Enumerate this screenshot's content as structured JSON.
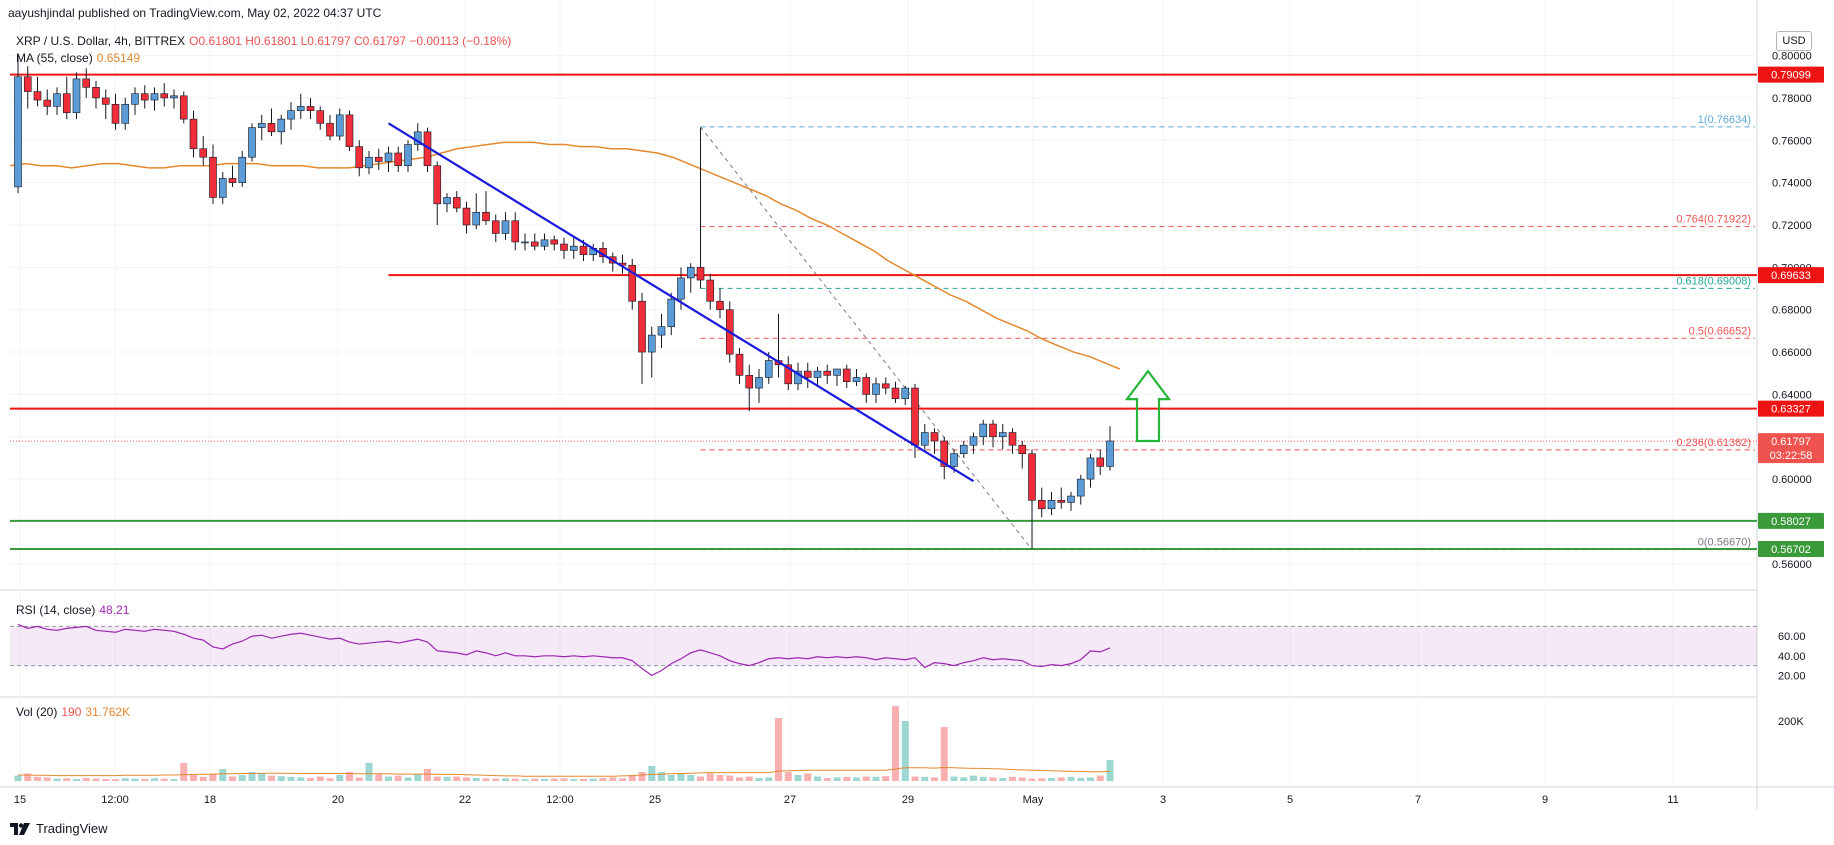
{
  "header": {
    "published": "aayushjindal published on TradingView.com, May 02, 2022 04:37 UTC"
  },
  "legend": {
    "symbol": "XRP / U.S. Dollar, 4h, BITTREX",
    "ohlc": "O0.61801 H0.61801 L0.61797 C0.61797 −0.00113 (−0.18%)",
    "ma_label": "MA (55, close)",
    "ma_value": "0.65149",
    "rsi_label": "RSI (14, close)",
    "rsi_value": "48.21",
    "vol_label": "Vol (20)",
    "vol_value1": "190",
    "vol_value2": "31.762K"
  },
  "currency_badge": "USD",
  "footer": {
    "brand": "TradingView"
  },
  "colors": {
    "up": "#5b9cd6",
    "down": "#ef2e3a",
    "ma": "#e4892f",
    "trendline": "#1a1adf",
    "resistance": "#ef1414",
    "support": "#3a9a3a",
    "fib": "#ef5350",
    "rsi": "#9c27b0",
    "arrow": "#27b43b"
  },
  "chart_data": {
    "type": "candlestick",
    "title": "XRP / U.S. Dollar, 4h, BITTREX",
    "ylim": [
      0.55,
      0.805
    ],
    "y_ticks": [
      "0.80000",
      "0.78000",
      "0.76000",
      "0.74000",
      "0.72000",
      "0.70000",
      "0.68000",
      "0.66000",
      "0.64000",
      "0.62000",
      "0.60000",
      "0.58000",
      "0.56000"
    ],
    "x_ticks": [
      "15",
      "12:00",
      "18",
      "20",
      "22",
      "12:00",
      "25",
      "27",
      "29",
      "May",
      "3",
      "5",
      "7",
      "9",
      "11"
    ],
    "price_labels": [
      {
        "value": 0.79099,
        "text": "0.79099",
        "color": "#ef1414"
      },
      {
        "value": 0.69633,
        "text": "0.69633",
        "color": "#ef1414"
      },
      {
        "value": 0.63327,
        "text": "0.63327",
        "color": "#ef1414"
      },
      {
        "value": 0.61797,
        "text": "0.61797",
        "color": "#ef5350",
        "sub": "03:22:58"
      },
      {
        "value": 0.58027,
        "text": "0.58027",
        "color": "#3a9a3a"
      },
      {
        "value": 0.56702,
        "text": "0.56702",
        "color": "#3a9a3a"
      }
    ],
    "horizontal_levels": {
      "resistance": [
        0.79099,
        0.69633,
        0.63327
      ],
      "support": [
        0.58027,
        0.56702
      ]
    },
    "fibonacci": [
      {
        "ratio": "1",
        "value": 0.76634,
        "label": "1(0.76634)",
        "color": "#5fa8d3"
      },
      {
        "ratio": "0.764",
        "value": 0.71922,
        "label": "0.764(0.71922)",
        "color": "#ef5350"
      },
      {
        "ratio": "0.618",
        "value": 0.69008,
        "label": "0.618(0.69008)",
        "color": "#26a69a"
      },
      {
        "ratio": "0.5",
        "value": 0.66652,
        "label": "0.5(0.66652)",
        "color": "#ef5350"
      },
      {
        "ratio": "0.236",
        "value": 0.61382,
        "label": "0.236(0.61382)",
        "color": "#ef5350"
      },
      {
        "ratio": "0",
        "value": 0.5667,
        "label": "0(0.56670)",
        "color": "#787b86"
      }
    ],
    "candles": [
      [
        0.738,
        0.8,
        0.735,
        0.79
      ],
      [
        0.79,
        0.795,
        0.775,
        0.783
      ],
      [
        0.783,
        0.79,
        0.776,
        0.779
      ],
      [
        0.779,
        0.784,
        0.772,
        0.776
      ],
      [
        0.776,
        0.785,
        0.772,
        0.782
      ],
      [
        0.782,
        0.79,
        0.77,
        0.773
      ],
      [
        0.773,
        0.792,
        0.77,
        0.789
      ],
      [
        0.789,
        0.794,
        0.78,
        0.785
      ],
      [
        0.785,
        0.788,
        0.775,
        0.78
      ],
      [
        0.78,
        0.784,
        0.77,
        0.777
      ],
      [
        0.777,
        0.782,
        0.765,
        0.768
      ],
      [
        0.768,
        0.78,
        0.765,
        0.777
      ],
      [
        0.777,
        0.785,
        0.772,
        0.782
      ],
      [
        0.782,
        0.786,
        0.775,
        0.779
      ],
      [
        0.779,
        0.785,
        0.774,
        0.782
      ],
      [
        0.782,
        0.787,
        0.776,
        0.78
      ],
      [
        0.78,
        0.784,
        0.775,
        0.781
      ],
      [
        0.781,
        0.783,
        0.768,
        0.77
      ],
      [
        0.77,
        0.774,
        0.752,
        0.756
      ],
      [
        0.756,
        0.762,
        0.748,
        0.752
      ],
      [
        0.752,
        0.758,
        0.73,
        0.733
      ],
      [
        0.733,
        0.745,
        0.73,
        0.742
      ],
      [
        0.742,
        0.748,
        0.738,
        0.74
      ],
      [
        0.74,
        0.755,
        0.738,
        0.752
      ],
      [
        0.752,
        0.768,
        0.75,
        0.766
      ],
      [
        0.766,
        0.772,
        0.76,
        0.768
      ],
      [
        0.768,
        0.775,
        0.762,
        0.764
      ],
      [
        0.764,
        0.772,
        0.758,
        0.77
      ],
      [
        0.77,
        0.778,
        0.765,
        0.774
      ],
      [
        0.774,
        0.782,
        0.77,
        0.776
      ],
      [
        0.776,
        0.78,
        0.77,
        0.774
      ],
      [
        0.774,
        0.776,
        0.765,
        0.768
      ],
      [
        0.768,
        0.772,
        0.76,
        0.762
      ],
      [
        0.762,
        0.775,
        0.76,
        0.772
      ],
      [
        0.772,
        0.774,
        0.755,
        0.757
      ],
      [
        0.757,
        0.76,
        0.743,
        0.747
      ],
      [
        0.747,
        0.755,
        0.744,
        0.752
      ],
      [
        0.752,
        0.756,
        0.746,
        0.75
      ],
      [
        0.75,
        0.757,
        0.745,
        0.754
      ],
      [
        0.754,
        0.757,
        0.745,
        0.748
      ],
      [
        0.748,
        0.76,
        0.745,
        0.758
      ],
      [
        0.758,
        0.768,
        0.755,
        0.764
      ],
      [
        0.764,
        0.766,
        0.745,
        0.748
      ],
      [
        0.748,
        0.75,
        0.72,
        0.73
      ],
      [
        0.73,
        0.735,
        0.726,
        0.733
      ],
      [
        0.733,
        0.736,
        0.726,
        0.728
      ],
      [
        0.728,
        0.731,
        0.716,
        0.72
      ],
      [
        0.72,
        0.735,
        0.718,
        0.726
      ],
      [
        0.726,
        0.736,
        0.72,
        0.722
      ],
      [
        0.722,
        0.725,
        0.712,
        0.716
      ],
      [
        0.716,
        0.726,
        0.713,
        0.722
      ],
      [
        0.722,
        0.726,
        0.708,
        0.712
      ],
      [
        0.712,
        0.716,
        0.708,
        0.712
      ],
      [
        0.712,
        0.716,
        0.708,
        0.71
      ],
      [
        0.71,
        0.716,
        0.708,
        0.713
      ],
      [
        0.713,
        0.715,
        0.708,
        0.711
      ],
      [
        0.711,
        0.714,
        0.704,
        0.708
      ],
      [
        0.708,
        0.714,
        0.704,
        0.71
      ],
      [
        0.71,
        0.713,
        0.703,
        0.706
      ],
      [
        0.706,
        0.711,
        0.703,
        0.709
      ],
      [
        0.709,
        0.712,
        0.702,
        0.705
      ],
      [
        0.705,
        0.707,
        0.698,
        0.702
      ],
      [
        0.702,
        0.706,
        0.697,
        0.701
      ],
      [
        0.701,
        0.704,
        0.68,
        0.684
      ],
      [
        0.684,
        0.688,
        0.645,
        0.66
      ],
      [
        0.66,
        0.672,
        0.648,
        0.668
      ],
      [
        0.668,
        0.678,
        0.662,
        0.672
      ],
      [
        0.672,
        0.688,
        0.668,
        0.685
      ],
      [
        0.685,
        0.7,
        0.68,
        0.695
      ],
      [
        0.695,
        0.702,
        0.688,
        0.7
      ],
      [
        0.7,
        0.766,
        0.69,
        0.694
      ],
      [
        0.694,
        0.697,
        0.68,
        0.684
      ],
      [
        0.684,
        0.69,
        0.676,
        0.68
      ],
      [
        0.68,
        0.684,
        0.655,
        0.659
      ],
      [
        0.659,
        0.662,
        0.645,
        0.649
      ],
      [
        0.649,
        0.654,
        0.632,
        0.643
      ],
      [
        0.643,
        0.652,
        0.636,
        0.648
      ],
      [
        0.648,
        0.66,
        0.645,
        0.656
      ],
      [
        0.656,
        0.678,
        0.648,
        0.654
      ],
      [
        0.654,
        0.658,
        0.642,
        0.645
      ],
      [
        0.645,
        0.655,
        0.642,
        0.651
      ],
      [
        0.651,
        0.655,
        0.643,
        0.648
      ],
      [
        0.648,
        0.653,
        0.644,
        0.651
      ],
      [
        0.651,
        0.654,
        0.645,
        0.649
      ],
      [
        0.649,
        0.652,
        0.644,
        0.652
      ],
      [
        0.652,
        0.654,
        0.643,
        0.646
      ],
      [
        0.646,
        0.652,
        0.644,
        0.648
      ],
      [
        0.648,
        0.65,
        0.636,
        0.64
      ],
      [
        0.64,
        0.648,
        0.636,
        0.645
      ],
      [
        0.645,
        0.648,
        0.64,
        0.643
      ],
      [
        0.643,
        0.646,
        0.636,
        0.638
      ],
      [
        0.638,
        0.644,
        0.635,
        0.643
      ],
      [
        0.643,
        0.645,
        0.61,
        0.616
      ],
      [
        0.616,
        0.626,
        0.614,
        0.622
      ],
      [
        0.622,
        0.624,
        0.612,
        0.618
      ],
      [
        0.618,
        0.62,
        0.6,
        0.606
      ],
      [
        0.606,
        0.614,
        0.603,
        0.612
      ],
      [
        0.612,
        0.618,
        0.61,
        0.616
      ],
      [
        0.616,
        0.622,
        0.612,
        0.62
      ],
      [
        0.62,
        0.628,
        0.616,
        0.626
      ],
      [
        0.626,
        0.628,
        0.615,
        0.62
      ],
      [
        0.62,
        0.626,
        0.614,
        0.622
      ],
      [
        0.622,
        0.624,
        0.612,
        0.616
      ],
      [
        0.616,
        0.618,
        0.605,
        0.612
      ],
      [
        0.612,
        0.614,
        0.567,
        0.59
      ],
      [
        0.59,
        0.596,
        0.582,
        0.586
      ],
      [
        0.586,
        0.594,
        0.583,
        0.59
      ],
      [
        0.59,
        0.596,
        0.586,
        0.589
      ],
      [
        0.589,
        0.594,
        0.585,
        0.592
      ],
      [
        0.592,
        0.602,
        0.588,
        0.6
      ],
      [
        0.6,
        0.612,
        0.596,
        0.61
      ],
      [
        0.61,
        0.614,
        0.602,
        0.606
      ],
      [
        0.606,
        0.625,
        0.604,
        0.618
      ]
    ],
    "ma_55": [
      0.748,
      0.749,
      0.748,
      0.748,
      0.747,
      0.748,
      0.749,
      0.749,
      0.748,
      0.747,
      0.747,
      0.748,
      0.748,
      0.748,
      0.749,
      0.749,
      0.749,
      0.748,
      0.748,
      0.748,
      0.747,
      0.747,
      0.747,
      0.748,
      0.749,
      0.75,
      0.751,
      0.752,
      0.754,
      0.756,
      0.757,
      0.758,
      0.759,
      0.759,
      0.759,
      0.758,
      0.758,
      0.757,
      0.757,
      0.756,
      0.756,
      0.755,
      0.754,
      0.752,
      0.749,
      0.746,
      0.743,
      0.74,
      0.737,
      0.734,
      0.73,
      0.727,
      0.723,
      0.72,
      0.716,
      0.712,
      0.708,
      0.703,
      0.699,
      0.695,
      0.691,
      0.687,
      0.684,
      0.68,
      0.676,
      0.673,
      0.67,
      0.666,
      0.663,
      0.66,
      0.658,
      0.655,
      0.652
    ],
    "ma_start_index": 0,
    "ma_plot_end_index": 113,
    "rsi": {
      "range": [
        0,
        100
      ],
      "ticks": [
        60,
        40,
        20
      ],
      "band": [
        30,
        70
      ],
      "values": [
        72,
        68,
        70,
        67,
        66,
        68,
        69,
        70,
        66,
        65,
        64,
        67,
        66,
        65,
        67,
        66,
        65,
        62,
        58,
        56,
        49,
        47,
        52,
        55,
        60,
        61,
        58,
        60,
        62,
        63,
        61,
        59,
        57,
        58,
        54,
        52,
        53,
        54,
        55,
        53,
        55,
        57,
        54,
        45,
        44,
        43,
        41,
        45,
        43,
        40,
        43,
        40,
        40,
        39,
        40,
        40,
        39,
        40,
        39,
        40,
        39,
        38,
        38,
        35,
        27,
        20,
        25,
        32,
        37,
        43,
        46,
        43,
        40,
        35,
        32,
        30,
        33,
        37,
        38,
        37,
        38,
        37,
        39,
        38,
        39,
        38,
        39,
        38,
        36,
        38,
        37,
        36,
        38,
        28,
        33,
        32,
        30,
        33,
        35,
        38,
        36,
        37,
        36,
        35,
        30,
        29,
        31,
        30,
        32,
        36,
        45,
        44,
        48
      ]
    },
    "volume": {
      "ticks": [
        "200K"
      ],
      "max": 270000,
      "values": [
        18000,
        25000,
        14000,
        12000,
        8000,
        9000,
        7000,
        10000,
        8000,
        7000,
        6000,
        9000,
        8000,
        7000,
        9000,
        8000,
        6000,
        60000,
        20000,
        14000,
        25000,
        40000,
        15000,
        20000,
        30000,
        25000,
        18000,
        16000,
        14000,
        12000,
        10000,
        15000,
        9000,
        20000,
        30000,
        12000,
        60000,
        22000,
        15000,
        18000,
        12000,
        25000,
        40000,
        15000,
        14000,
        15000,
        12000,
        10000,
        9000,
        8000,
        9000,
        8000,
        6000,
        8000,
        7000,
        8000,
        9000,
        6000,
        7000,
        8000,
        10000,
        12000,
        9000,
        20000,
        30000,
        50000,
        30000,
        20000,
        25000,
        20000,
        15000,
        25000,
        20000,
        18000,
        12000,
        15000,
        10000,
        12000,
        210000,
        30000,
        20000,
        25000,
        15000,
        10000,
        12000,
        14000,
        12000,
        15000,
        14000,
        16000,
        250000,
        200000,
        15000,
        14000,
        12000,
        180000,
        15000,
        12000,
        18000,
        14000,
        12000,
        10000,
        14000,
        12000,
        8000,
        9000,
        10000,
        12000,
        14000,
        10000,
        12000,
        18000,
        70000
      ],
      "ma": [
        20000,
        20000,
        19000,
        19000,
        18000,
        18000,
        18000,
        18000,
        18000,
        18000,
        18000,
        19000,
        19000,
        19000,
        19000,
        20000,
        20000,
        21000,
        22000,
        22000,
        23000,
        24000,
        24000,
        25000,
        25000,
        26000,
        26000,
        26000,
        26000,
        25000,
        25000,
        25000,
        25000,
        25000,
        25000,
        24000,
        24000,
        24000,
        24000,
        23000,
        23000,
        23000,
        23000,
        22000,
        22000,
        22000,
        21000,
        20000,
        19000,
        18000,
        17000,
        17000,
        16000,
        16000,
        16000,
        16000,
        16000,
        16000,
        16000,
        16000,
        16000,
        16000,
        17000,
        18000,
        20000,
        22000,
        23000,
        24000,
        25000,
        26000,
        27000,
        28000,
        28000,
        28000,
        28000,
        28000,
        28000,
        28000,
        33000,
        34000,
        35000,
        36000,
        36000,
        36000,
        36000,
        36000,
        36000,
        36000,
        36000,
        36000,
        40000,
        44000,
        44000,
        44000,
        43000,
        45000,
        44000,
        43000,
        42000,
        42000,
        41000,
        40000,
        38000,
        37000,
        36000,
        35000,
        34000,
        33000,
        32000,
        32000,
        31000,
        31000,
        32000
      ]
    }
  }
}
